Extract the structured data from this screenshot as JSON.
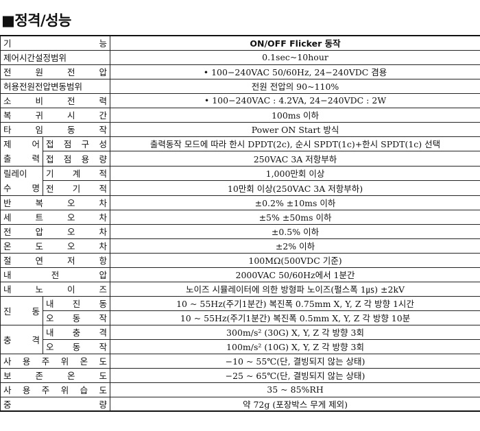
{
  "title": "■정격/성능",
  "table": {
    "header": {
      "label": "기 능",
      "value": "ON/OFF Flicker 동작"
    },
    "rows": {
      "control_time": {
        "label": "제어시간설정범위",
        "value": "0.1sec~10hour"
      },
      "supply_voltage": {
        "label": "전 원 전 압",
        "value": "• 100−240VAC 50/60Hz, 24−240VDC 겸용"
      },
      "voltage_range": {
        "label": "허용전원전압변동범위",
        "value": "전원 전압의 90~110%"
      },
      "power": {
        "label": "소 비 전 력",
        "value": "• 100−240VAC : 4.2VA, 24−240VDC : 2W"
      },
      "reset_time": {
        "label": "복 귀 시 간",
        "value": "100ms 이하"
      },
      "timer_op": {
        "label": "타 임 동 작",
        "value": "Power ON Start 방식"
      },
      "output_label": [
        "제 어",
        "출 력"
      ],
      "contact_config": {
        "label": "접 점 구 성",
        "value": "출력동작 모드에 따라 한시 DPDT(2c), 순시 SPDT(1c)+한시 SPDT(1c) 선택"
      },
      "contact_capacity": {
        "label": "접 점 용 량",
        "value": "250VAC 3A 저항부하"
      },
      "relay_life_label": [
        "릴레이",
        "수 명"
      ],
      "mechanical": {
        "label": "기 계 적",
        "value": "1,000만회 이상"
      },
      "electrical": {
        "label": "전 기 적",
        "value": "10만회 이상(250VAC 3A 저항부하)"
      },
      "repeat_error": {
        "label": "반 복 오 차",
        "value": "±0.2% ±10ms 이하"
      },
      "setting_error": {
        "label": "세 트 오 차",
        "value": "±5% ±50ms 이하"
      },
      "voltage_error": {
        "label": "전 압 오 차",
        "value": "±0.5% 이하"
      },
      "temp_error": {
        "label": "온 도 오 차",
        "value": "±2% 이하"
      },
      "insulation": {
        "label": "절 연 저 항",
        "value": "100MΩ(500VDC 기준)"
      },
      "dielectric": {
        "label": "내 전 압",
        "value": "2000VAC 50/60Hz에서 1분간"
      },
      "noise": {
        "label": "내 노 이 즈",
        "value": "노이즈 시뮬레이터에 의한 방형파 노이즈(펄스폭 1㎲) ±2kV"
      },
      "vibration_label": "진 동",
      "vibration_durability": {
        "label": "내 진 동",
        "value": "10 ~ 55Hz(주기1분간) 복진폭 0.75mm X, Y, Z 각 방향 1시간"
      },
      "vibration_malfunction": {
        "label": "오 동 작",
        "value": "10 ~ 55Hz(주기1분간) 복진폭 0.5mm X, Y, Z 각 방향 10분"
      },
      "shock_label": "충 격",
      "shock_durability": {
        "label": "내 충 격",
        "value": "300m/s²  (30G) X, Y, Z 각 방향 3회"
      },
      "shock_malfunction": {
        "label": "오 동 작",
        "value": "100m/s²  (10G) X, Y, Z 각 방향 3회"
      },
      "ambient_temp": {
        "label": "사 용 주 위 온 도",
        "value": "−10 ~ 55℃(단, 결빙되지 않는 상태)"
      },
      "storage_temp": {
        "label": "보 존 온 도",
        "value": "−25 ~ 65℃(단, 결빙되지 않는 상태)"
      },
      "ambient_humidity": {
        "label": "사 용 주 위 습 도",
        "value": "35 ~ 85%RH"
      },
      "weight": {
        "label": "중 량",
        "value": "약 72g (포장박스 무게 제외)"
      }
    }
  }
}
